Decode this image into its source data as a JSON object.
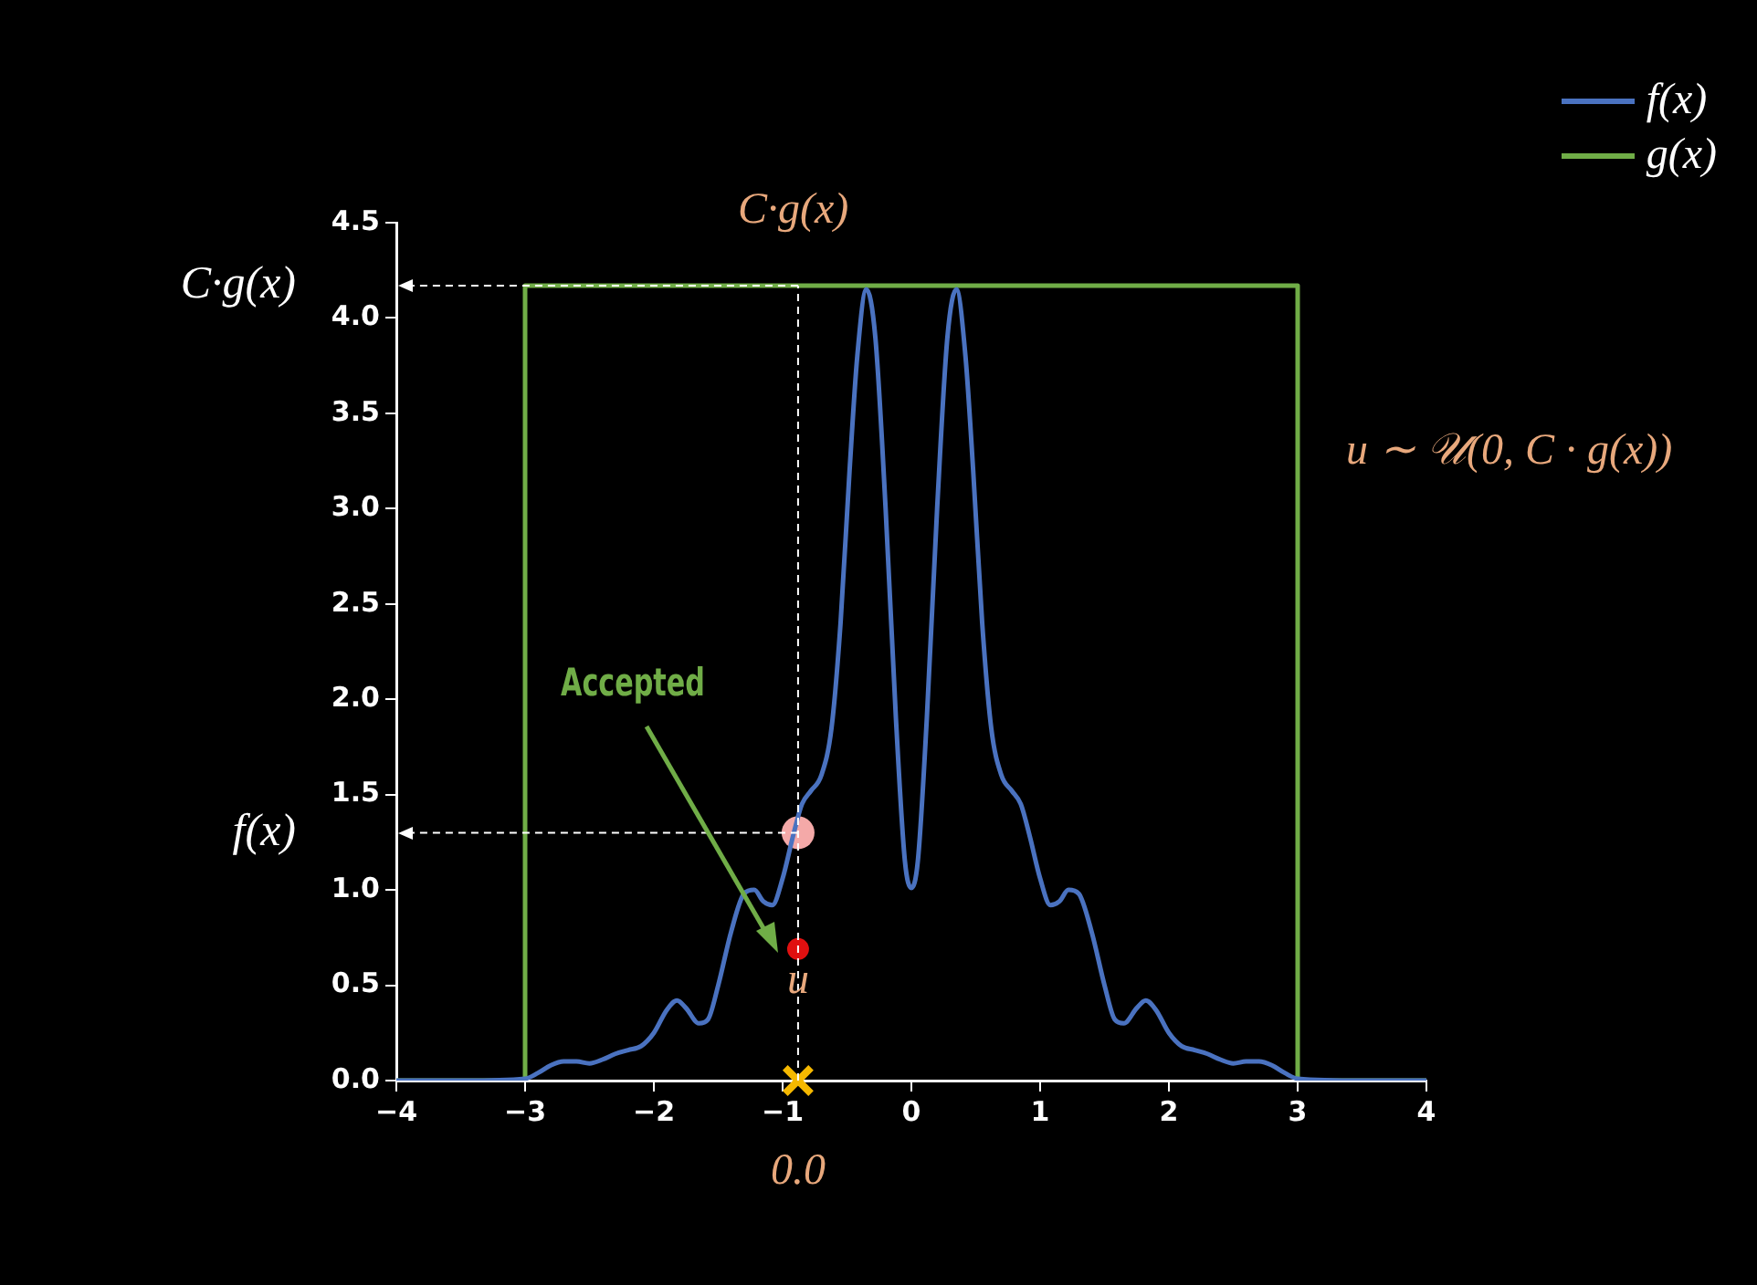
{
  "chart_data": {
    "type": "line",
    "series": [
      {
        "name": "f(x)",
        "color": "#4a72c0",
        "x": [
          -4,
          -3.5,
          -3.0,
          -2.9,
          -2.8,
          -2.7,
          -2.6,
          -2.5,
          -2.4,
          -2.3,
          -2.2,
          -2.1,
          -2.0,
          -1.9,
          -1.82,
          -1.75,
          -1.65,
          -1.58,
          -1.5,
          -1.4,
          -1.3,
          -1.22,
          -1.15,
          -1.08,
          -1.0,
          -0.92,
          -0.85,
          -0.78,
          -0.7,
          -0.62,
          -0.55,
          -0.48,
          -0.42,
          -0.35,
          -0.28,
          -0.2,
          -0.12,
          -0.05,
          0,
          0.05,
          0.12,
          0.2,
          0.28,
          0.35,
          0.42,
          0.48,
          0.55,
          0.62,
          0.7,
          0.78,
          0.85,
          0.92,
          1.0,
          1.08,
          1.15,
          1.22,
          1.3,
          1.4,
          1.5,
          1.58,
          1.65,
          1.75,
          1.82,
          1.9,
          2.0,
          2.1,
          2.2,
          2.3,
          2.4,
          2.5,
          2.6,
          2.7,
          2.8,
          2.9,
          3.0,
          3.5,
          4
        ],
        "values": [
          0,
          0,
          0.01,
          0.04,
          0.08,
          0.1,
          0.1,
          0.09,
          0.11,
          0.14,
          0.16,
          0.18,
          0.25,
          0.37,
          0.42,
          0.38,
          0.3,
          0.32,
          0.5,
          0.78,
          0.98,
          1.0,
          0.94,
          0.92,
          1.06,
          1.28,
          1.45,
          1.52,
          1.6,
          1.85,
          2.4,
          3.2,
          3.8,
          4.15,
          3.9,
          3.0,
          1.9,
          1.15,
          1.01,
          1.15,
          1.9,
          3.0,
          3.9,
          4.15,
          3.8,
          3.2,
          2.4,
          1.85,
          1.6,
          1.52,
          1.45,
          1.28,
          1.06,
          0.92,
          0.94,
          1.0,
          0.98,
          0.78,
          0.5,
          0.32,
          0.3,
          0.38,
          0.42,
          0.37,
          0.25,
          0.18,
          0.16,
          0.14,
          0.11,
          0.09,
          0.1,
          0.1,
          0.08,
          0.04,
          0.01,
          0,
          0
        ]
      },
      {
        "name": "g(x)",
        "color": "#70ad47",
        "x": [
          -4,
          -3,
          -3,
          3,
          3,
          4
        ],
        "values": [
          0,
          0,
          4.17,
          4.17,
          0,
          0
        ]
      },
      {
        "type": "scatter",
        "color": "#f4a9a8",
        "marker": "circle",
        "x": [
          -0.88
        ],
        "values": [
          1.3
        ]
      },
      {
        "type": "scatter",
        "color": "#e01010",
        "marker": "circle",
        "x": [
          -0.88
        ],
        "values": [
          0.69
        ]
      },
      {
        "type": "scatter",
        "color": "#f5b800",
        "marker": "cross",
        "x": [
          -0.88
        ],
        "values": [
          0
        ]
      }
    ],
    "xlim": [
      -4,
      4
    ],
    "xticks": [
      {
        "value": -4,
        "label": "−4"
      },
      {
        "value": -3,
        "label": "−3"
      },
      {
        "value": -2,
        "label": "−2"
      },
      {
        "value": -1,
        "label": "−1"
      },
      0,
      1,
      2,
      3,
      4
    ],
    "ylim": [
      0,
      4.5
    ],
    "yticks": [
      {
        "value": 0,
        "label": "0.0"
      },
      0.5,
      {
        "value": 1,
        "label": "1.0"
      },
      1.5,
      {
        "value": 2,
        "label": "2.0"
      },
      2.5,
      {
        "value": 3,
        "label": "3.0"
      },
      3.5,
      {
        "value": 4,
        "label": "4.0"
      },
      4.5
    ],
    "grid": false,
    "legend": "top right",
    "ref_lines": [
      {
        "axis": "x",
        "value": -0.88,
        "color": "#ffffff",
        "line_style": "dashed"
      },
      {
        "axis": "y",
        "value": 4.17,
        "label": "C·g(x)",
        "color": "#ffffff",
        "line_style": "dashed"
      },
      {
        "axis": "y",
        "value": 1.3,
        "label": "f(x)",
        "color": "#ffffff",
        "line_style": "dashed"
      }
    ],
    "annotations": [
      "C·g(x)",
      {
        "text": "u",
        "x": -0.88,
        "y": 0.69
      },
      {
        "text": "0.0",
        "x": -0.88,
        "y": 0
      },
      "u ∼ 𝒰(0, C · g(x))",
      "Accepted"
    ]
  }
}
